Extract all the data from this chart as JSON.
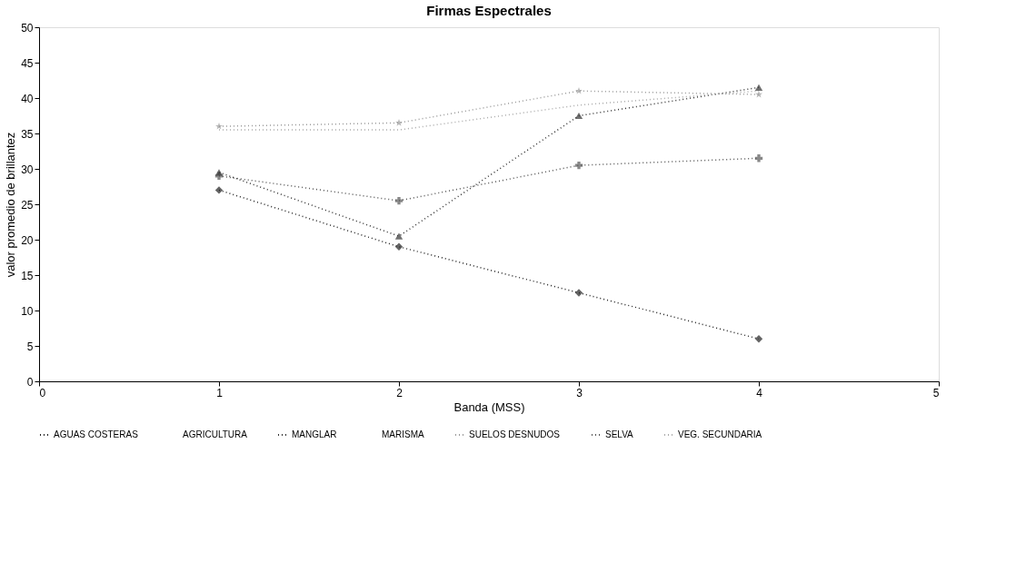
{
  "chart_data": {
    "type": "line",
    "title": "Firmas Espectrales",
    "xlabel": "Banda (MSS)",
    "ylabel": "valor promedio de brillantez",
    "x": [
      1,
      2,
      3,
      4
    ],
    "series": [
      {
        "name": "AGUAS COSTERAS",
        "color": "#222222",
        "marker": "diamond",
        "values": [
          27,
          19,
          12.5,
          6
        ]
      },
      {
        "name": "AGRICULTURA",
        "values": [
          null,
          null,
          null,
          null
        ]
      },
      {
        "name": "MANGLAR",
        "color": "#333333",
        "marker": "triangle",
        "values": [
          29.5,
          20.5,
          37.5,
          41.5
        ]
      },
      {
        "name": "MARISMA",
        "values": [
          null,
          null,
          null,
          null
        ]
      },
      {
        "name": "SUELOS DESNUDOS",
        "color": "#999999",
        "marker": "star",
        "values": [
          36,
          36.5,
          41,
          40.5
        ]
      },
      {
        "name": "SELVA",
        "color": "#555555",
        "marker": "cross",
        "values": [
          29,
          25.5,
          30.5,
          31.5
        ]
      },
      {
        "name": "VEG. SECUNDARIA",
        "color": "#aaaaaa",
        "marker": "none",
        "values": [
          35.5,
          35.5,
          39,
          41
        ]
      }
    ],
    "xlim": [
      0,
      5
    ],
    "xticks": [
      0,
      1,
      2,
      3,
      4,
      5
    ],
    "ylim": [
      0,
      50
    ],
    "yticks": [
      0,
      5,
      10,
      15,
      20,
      25,
      30,
      35,
      40,
      45,
      50
    ],
    "grid": false,
    "legend": "bottom",
    "line_style": "dotted"
  }
}
